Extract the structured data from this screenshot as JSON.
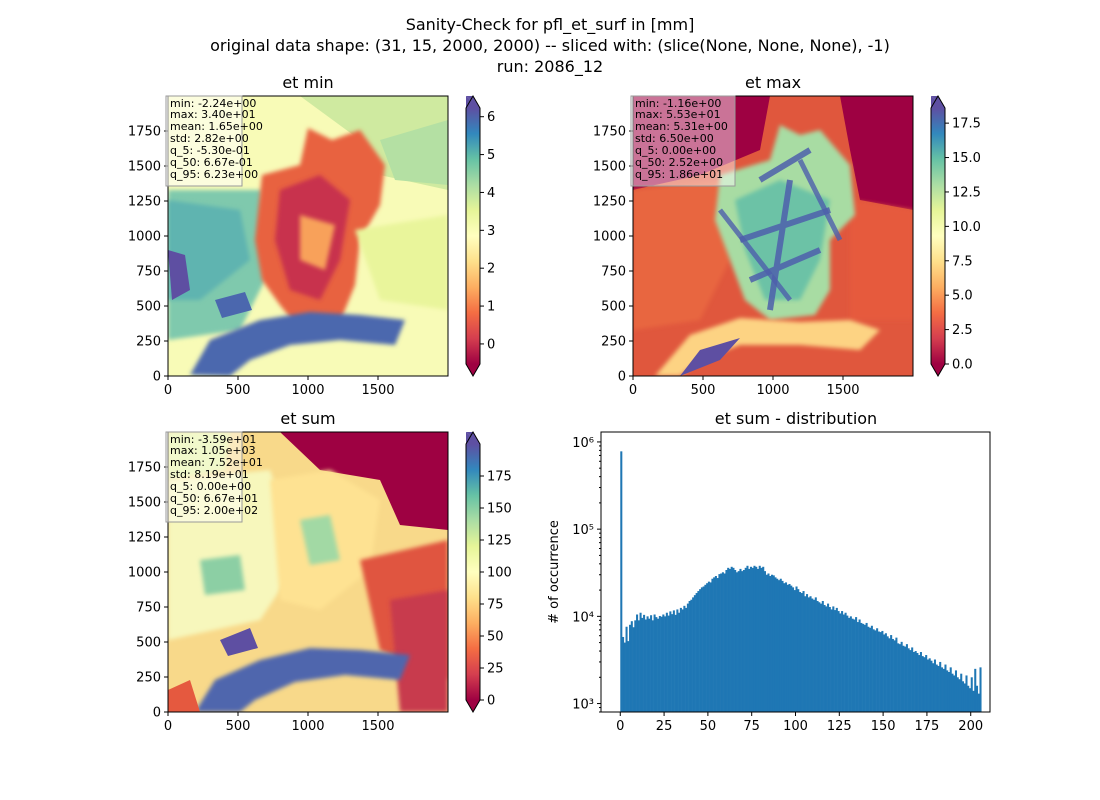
{
  "header": {
    "line1": "Sanity-Check for pfl_et_surf in [mm]",
    "line2": "original data shape: (31, 15, 2000, 2000) -- sliced with: (slice(None, None, None), -1)",
    "line3": "run: 2086_12"
  },
  "chart_data": [
    {
      "type": "heatmap",
      "title": "et min",
      "colormap": "Spectral",
      "x_ticks": [
        "0",
        "500",
        "1000",
        "1500"
      ],
      "y_ticks": [
        "0",
        "250",
        "500",
        "750",
        "1000",
        "1250",
        "1500",
        "1750"
      ],
      "xlim": [
        0,
        2000
      ],
      "ylim": [
        0,
        2000
      ],
      "colorbar": {
        "min": -0.53,
        "max": 6.23,
        "ticks": [
          0,
          1,
          2,
          3,
          4,
          5,
          6
        ],
        "extend": "both"
      },
      "stats": [
        "min: -2.24e+00",
        "max: 3.40e+01",
        "mean: 1.65e+00",
        "std: 2.82e+00",
        "q_5: -5.30e-01",
        "q_50: 6.67e-01",
        "q_95: 6.23e+00"
      ]
    },
    {
      "type": "heatmap",
      "title": "et max",
      "colormap": "Spectral",
      "x_ticks": [
        "0",
        "500",
        "1000",
        "1500"
      ],
      "y_ticks": [
        "0",
        "250",
        "500",
        "750",
        "1000",
        "1250",
        "1500",
        "1750"
      ],
      "xlim": [
        0,
        2000
      ],
      "ylim": [
        0,
        2000
      ],
      "colorbar": {
        "min": 0.0,
        "max": 18.6,
        "ticks": [
          0.0,
          2.5,
          5.0,
          7.5,
          10.0,
          12.5,
          15.0,
          17.5
        ],
        "tick_labels": [
          "0.0",
          "2.5",
          "5.0",
          "7.5",
          "10.0",
          "12.5",
          "15.0",
          "17.5"
        ],
        "extend": "both"
      },
      "stats": [
        "min: -1.16e+00",
        "max: 5.53e+01",
        "mean: 5.31e+00",
        "std: 6.50e+00",
        "q_5: 0.00e+00",
        "q_50: 2.52e+00",
        "q_95: 1.86e+01"
      ]
    },
    {
      "type": "heatmap",
      "title": "et sum",
      "colormap": "Spectral",
      "x_ticks": [
        "0",
        "500",
        "1000",
        "1500"
      ],
      "y_ticks": [
        "0",
        "250",
        "500",
        "750",
        "1000",
        "1250",
        "1500",
        "1750"
      ],
      "xlim": [
        0,
        2000
      ],
      "ylim": [
        0,
        2000
      ],
      "colorbar": {
        "min": 0,
        "max": 200,
        "ticks": [
          0,
          25,
          50,
          75,
          100,
          125,
          150,
          175
        ],
        "extend": "both"
      },
      "stats": [
        "min: -3.59e+01",
        "max: 1.05e+03",
        "mean: 7.52e+01",
        "std: 8.19e+01",
        "q_5: 0.00e+00",
        "q_50: 6.67e+01",
        "q_95: 2.00e+02"
      ]
    },
    {
      "type": "bar",
      "title": "et sum - distribution",
      "xlabel": "",
      "ylabel": "# of occurrence",
      "yscale": "log",
      "xlim": [
        -11,
        211
      ],
      "ylim": [
        800,
        1300000
      ],
      "x_ticks": [
        0,
        25,
        50,
        75,
        100,
        125,
        150,
        175,
        200
      ],
      "y_ticks": [
        {
          "value": 1000,
          "label": "10³"
        },
        {
          "value": 10000,
          "label": "10⁴"
        },
        {
          "value": 100000,
          "label": "10⁵"
        },
        {
          "value": 1000000,
          "label": "10⁶"
        }
      ],
      "color": "#1f77b4",
      "bin_width": 1,
      "bins_start": 0,
      "values": [
        780000,
        5800,
        5000,
        7600,
        5200,
        8000,
        8800,
        7500,
        9000,
        10500,
        9000,
        11000,
        9600,
        10400,
        9200,
        10000,
        9400,
        10300,
        9000,
        10500,
        9800,
        9400,
        10100,
        9900,
        10500,
        10000,
        11000,
        10200,
        11400,
        10600,
        11700,
        10400,
        12000,
        11000,
        12500,
        12000,
        13200,
        12500,
        14000,
        15000,
        15500,
        16500,
        17500,
        18500,
        19500,
        20500,
        21500,
        22000,
        23000,
        24000,
        25000,
        24500,
        27000,
        28000,
        29000,
        27500,
        30500,
        31000,
        32000,
        31000,
        34000,
        36000,
        35000,
        37000,
        36000,
        34000,
        32000,
        33000,
        35000,
        33000,
        34000,
        36000,
        38000,
        35000,
        37000,
        36000,
        38000,
        37000,
        35000,
        38000,
        36000,
        37000,
        33000,
        30000,
        31000,
        29000,
        30000,
        29500,
        28000,
        27000,
        26000,
        27000,
        25500,
        24000,
        24500,
        23000,
        23500,
        22500,
        21500,
        20000,
        22000,
        20500,
        19000,
        18500,
        19500,
        17000,
        18000,
        16500,
        17000,
        16000,
        15500,
        16500,
        15000,
        14500,
        14000,
        15000,
        13500,
        13000,
        14000,
        12800,
        12000,
        13000,
        11800,
        12500,
        11500,
        10800,
        11500,
        10500,
        11000,
        10200,
        9600,
        10000,
        9400,
        9200,
        9800,
        8600,
        9200,
        8400,
        8200,
        8000,
        8400,
        7600,
        7400,
        7800,
        7100,
        6900,
        7300,
        6700,
        6600,
        6800,
        6200,
        6400,
        5900,
        5600,
        6100,
        5500,
        5300,
        5700,
        4900,
        4800,
        5100,
        4600,
        4500,
        4800,
        4300,
        4100,
        4400,
        3900,
        4000,
        3800,
        3600,
        3900,
        3500,
        3400,
        3600,
        3200,
        3300,
        3100,
        2900,
        3200,
        2800,
        2700,
        3000,
        2600,
        2500,
        2800,
        2400,
        2300,
        2600,
        2200,
        2100,
        2400,
        2000,
        1900,
        2200,
        1800,
        1700,
        2100,
        1600,
        1500,
        2000,
        1400,
        2500,
        1600,
        1300,
        2600
      ]
    }
  ]
}
